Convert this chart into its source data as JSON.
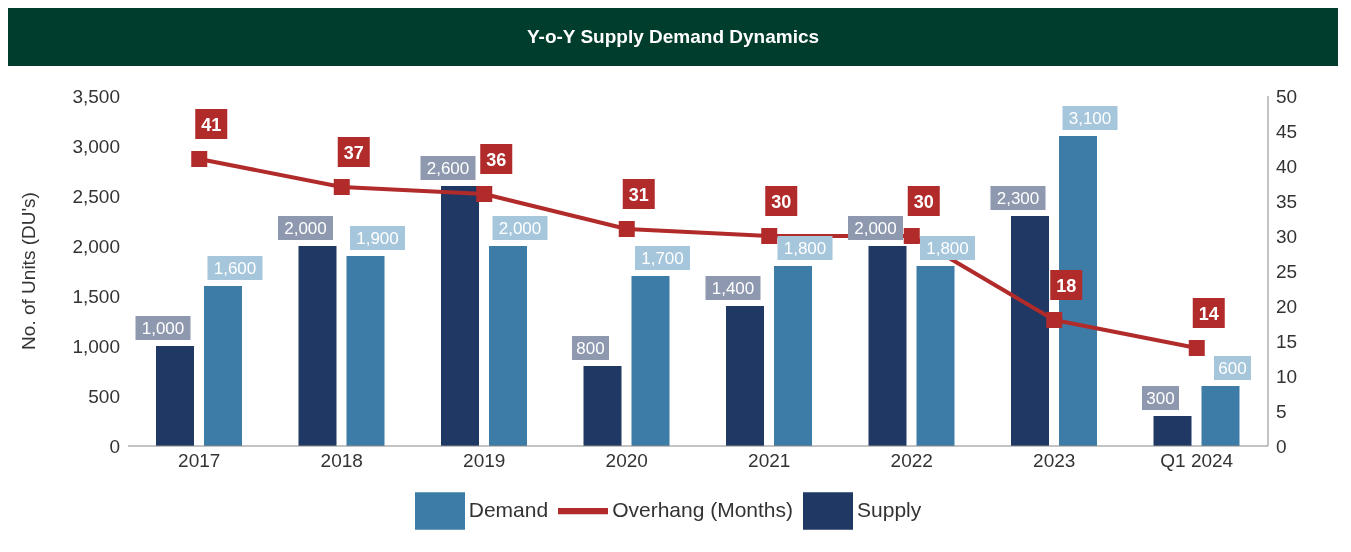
{
  "chart_data": {
    "type": "bar",
    "title": "Y-o-Y Supply Demand Dynamics",
    "ylabel": "No. of Units (DU's)",
    "categories": [
      "2017",
      "2018",
      "2019",
      "2020",
      "2021",
      "2022",
      "2023",
      "Q1 2024"
    ],
    "series": [
      {
        "name": "Supply",
        "color": "#1f3864",
        "values": [
          1000,
          2000,
          2600,
          800,
          1400,
          2000,
          2300,
          300
        ],
        "value_labels": [
          "1,000",
          "2,000",
          "2,600",
          "800",
          "1,400",
          "2,000",
          "2,300",
          "300"
        ]
      },
      {
        "name": "Demand",
        "color": "#3e7ca8",
        "values": [
          1600,
          1900,
          2000,
          1700,
          1800,
          1800,
          3100,
          600
        ],
        "value_labels": [
          "1,600",
          "1,900",
          "2,000",
          "1,700",
          "1,800",
          "1,800",
          "3,100",
          "600"
        ]
      },
      {
        "name": "Overhang (Months)",
        "type": "line",
        "axis": "y2",
        "color": "#b22b2b",
        "marker": "square",
        "line_style": "solid",
        "values": [
          41,
          37,
          36,
          31,
          30,
          30,
          18,
          14
        ],
        "data_labels": true
      }
    ],
    "ylim": [
      0,
      3500
    ],
    "yticks": [
      0,
      500,
      {
        "value": 1000,
        "label": "1,000"
      },
      {
        "value": 1500,
        "label": "1,500"
      },
      {
        "value": 2000,
        "label": "2,000"
      },
      {
        "value": 2500,
        "label": "2,500"
      },
      {
        "value": 3000,
        "label": "3,000"
      },
      {
        "value": 3500,
        "label": "3,500"
      }
    ],
    "y2lim": [
      0,
      50
    ],
    "y2ticks": [
      0,
      5,
      10,
      15,
      20,
      25,
      30,
      35,
      40,
      45,
      50
    ],
    "grid": false,
    "legend": "bottom"
  }
}
